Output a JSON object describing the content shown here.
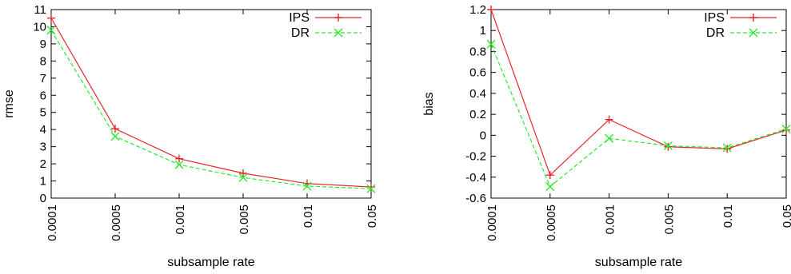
{
  "chart_data": [
    {
      "type": "line",
      "xlabel": "subsample rate",
      "ylabel": "rmse",
      "categories": [
        "0.0001",
        "0.0005",
        "0.001",
        "0.005",
        "0.01",
        "0.05"
      ],
      "ylim": [
        0,
        11
      ],
      "yticks": [
        "0",
        "1",
        "2",
        "3",
        "4",
        "5",
        "6",
        "7",
        "8",
        "9",
        "10",
        "11"
      ],
      "legend_position": "top-right",
      "grid": false,
      "series": [
        {
          "name": "IPS",
          "color": "#e8262b",
          "marker": "plus",
          "dash": "solid",
          "values": [
            10.5,
            4.05,
            2.3,
            1.45,
            0.85,
            0.65
          ]
        },
        {
          "name": "DR",
          "color": "#2be82b",
          "marker": "x",
          "dash": "dashed",
          "values": [
            9.8,
            3.6,
            1.95,
            1.2,
            0.7,
            0.55
          ]
        }
      ]
    },
    {
      "type": "line",
      "xlabel": "subsample rate",
      "ylabel": "bias",
      "categories": [
        "0.0001",
        "0.0005",
        "0.001",
        "0.005",
        "0.01",
        "0.05"
      ],
      "ylim": [
        -0.6,
        1.2
      ],
      "yticks": [
        "-0.6",
        "-0.4",
        "-0.2",
        "0",
        "0.2",
        "0.4",
        "0.6",
        "0.8",
        "1",
        "1.2"
      ],
      "legend_position": "top-right",
      "grid": false,
      "series": [
        {
          "name": "IPS",
          "color": "#e8262b",
          "marker": "plus",
          "dash": "solid",
          "values": [
            1.2,
            -0.38,
            0.15,
            -0.11,
            -0.13,
            0.05
          ]
        },
        {
          "name": "DR",
          "color": "#2be82b",
          "marker": "x",
          "dash": "dashed",
          "values": [
            0.87,
            -0.49,
            -0.03,
            -0.1,
            -0.12,
            0.06
          ]
        }
      ]
    }
  ]
}
